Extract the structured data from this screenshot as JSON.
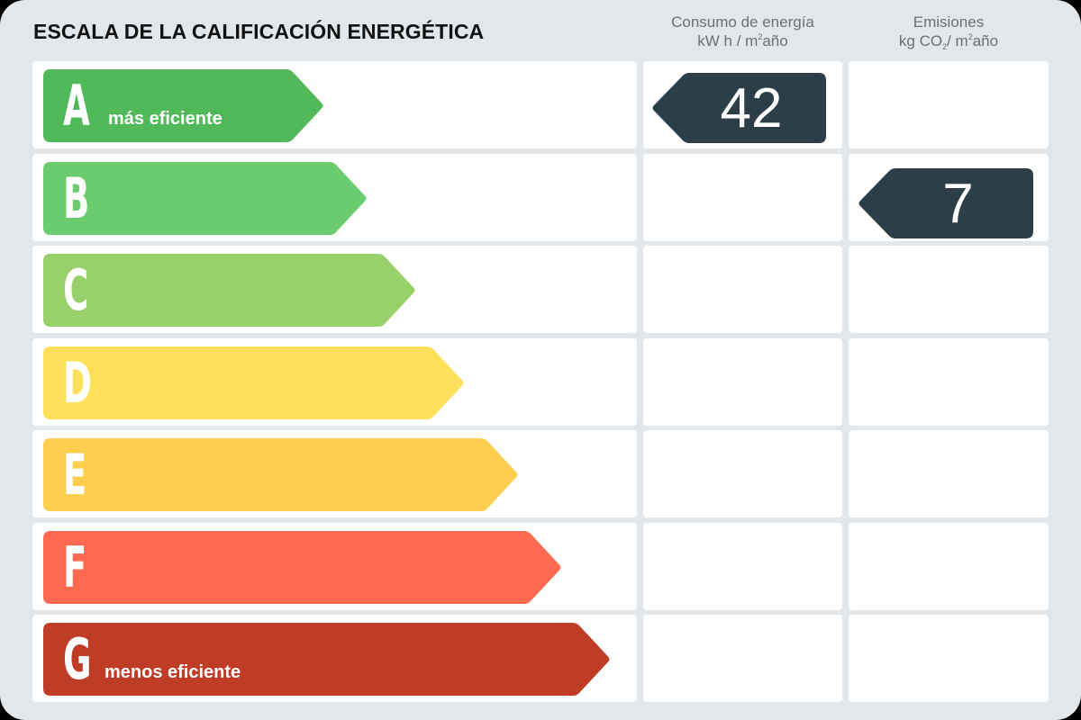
{
  "header": {
    "title": "ESCALA DE LA CALIFICACIÓN ENERGÉTICA",
    "energy": {
      "line1": "Consumo de energía",
      "unit_pre": "kW h / m",
      "unit_sup": "2",
      "unit_post": "año"
    },
    "emissions": {
      "line1": "Emisiones",
      "unit_pre": "kg CO",
      "unit_sub": "2",
      "unit_mid": "/ m",
      "unit_sup": "2",
      "unit_post": "año"
    }
  },
  "ratings": [
    {
      "letter": "A",
      "label": "más eficiente",
      "color": "#52b95a"
    },
    {
      "letter": "B",
      "label": "",
      "color": "#6acc6f"
    },
    {
      "letter": "C",
      "label": "",
      "color": "#98d06b"
    },
    {
      "letter": "D",
      "label": "",
      "color": "#fee05c"
    },
    {
      "letter": "E",
      "label": "",
      "color": "#fecf4f"
    },
    {
      "letter": "F",
      "label": "",
      "color": "#ff6a50"
    },
    {
      "letter": "G",
      "label": "menos eficiente",
      "color": "#bf3d27"
    }
  ],
  "indicators": {
    "energy": {
      "value": "42",
      "rating": "A",
      "color": "#2c3f48"
    },
    "emissions": {
      "value": "7",
      "rating": "B",
      "color": "#2c3f48"
    }
  },
  "chart_data": {
    "type": "table",
    "title": "ESCALA DE LA CALIFICACIÓN ENERGÉTICA",
    "categories": [
      "A",
      "B",
      "C",
      "D",
      "E",
      "F",
      "G"
    ],
    "scale_labels": {
      "A": "más eficiente",
      "G": "menos eficiente"
    },
    "series": [
      {
        "name": "Consumo de energía (kW h / m²año)",
        "value": 42,
        "rating": "A"
      },
      {
        "name": "Emisiones (kg CO₂/ m²año)",
        "value": 7,
        "rating": "B"
      }
    ]
  }
}
